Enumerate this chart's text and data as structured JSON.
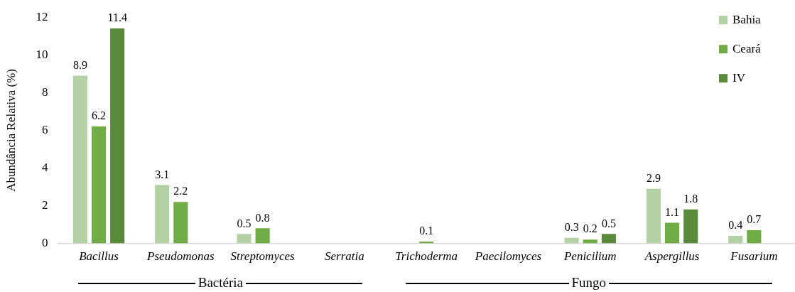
{
  "chart_data": {
    "type": "bar",
    "ylabel": "Abundância Relativa (%)",
    "categories": [
      "Bacillus",
      "Pseudomonas",
      "Streptomyces",
      "Serratia",
      "Trichoderma",
      "Paecilomyces",
      "Penicilium",
      "Aspergillus",
      "Fusarium"
    ],
    "series": [
      {
        "name": "Bahia",
        "color": "#b3d1a4",
        "values": [
          8.9,
          3.1,
          0.5,
          null,
          null,
          null,
          0.3,
          2.9,
          0.4
        ]
      },
      {
        "name": "Ceará",
        "color": "#70ad47",
        "values": [
          6.2,
          2.2,
          0.8,
          null,
          0.1,
          null,
          0.2,
          1.1,
          0.7
        ]
      },
      {
        "name": "IV",
        "color": "#598b3a",
        "values": [
          11.4,
          null,
          null,
          null,
          null,
          null,
          0.5,
          1.8,
          null
        ]
      }
    ],
    "ylim": [
      0,
      12
    ],
    "yticks": [
      0,
      2,
      4,
      6,
      8,
      10,
      12
    ],
    "grid": false,
    "legend": "top right",
    "data_labels": true,
    "annotations": [
      "Bactéria",
      "Fungo"
    ]
  }
}
